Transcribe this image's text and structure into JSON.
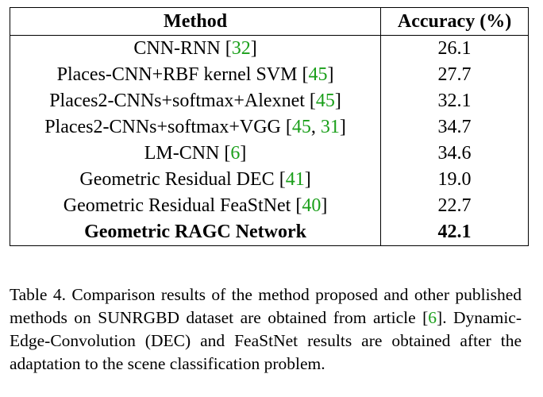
{
  "table": {
    "header": {
      "method": "Method",
      "accuracy": "Accuracy (%)"
    },
    "rows": [
      {
        "method": "CNN-RNN",
        "cite": [
          "32"
        ],
        "accuracy": "26.1",
        "bold": false
      },
      {
        "method": "Places-CNN+RBF kernel SVM",
        "cite": [
          "45"
        ],
        "accuracy": "27.7",
        "bold": false
      },
      {
        "method": "Places2-CNNs+softmax+Alexnet",
        "cite": [
          "45"
        ],
        "accuracy": "32.1",
        "bold": false
      },
      {
        "method": "Places2-CNNs+softmax+VGG",
        "cite": [
          "45",
          "31"
        ],
        "accuracy": "34.7",
        "bold": false
      },
      {
        "method": "LM-CNN",
        "cite": [
          "6"
        ],
        "accuracy": "34.6",
        "bold": false
      },
      {
        "method": "Geometric Residual DEC",
        "cite": [
          "41"
        ],
        "accuracy": "19.0",
        "bold": false
      },
      {
        "method": "Geometric Residual FeaStNet",
        "cite": [
          "40"
        ],
        "accuracy": "22.7",
        "bold": false
      },
      {
        "method": "Geometric RAGC Network",
        "cite": [],
        "accuracy": "42.1",
        "bold": true
      }
    ]
  },
  "caption": {
    "part1": "Table 4. Comparison results of the method proposed and other published methods on SUNRGBD dataset are obtained from article [",
    "cite": "6",
    "part2": "]. Dynamic-Edge-Convolution (DEC) and FeaStNet results are obtained after the adaptation to the scene classification problem."
  },
  "colors": {
    "citation": "#1a9f1a"
  }
}
